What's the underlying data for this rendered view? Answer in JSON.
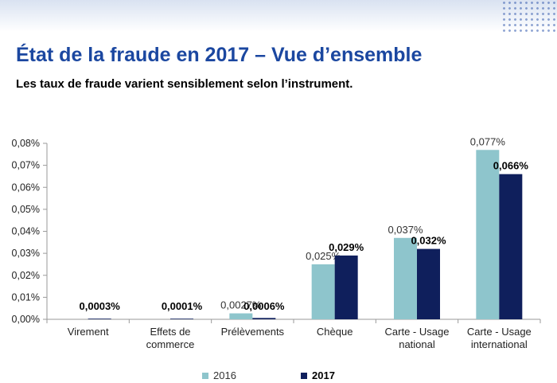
{
  "header": {
    "title": "État de la fraude en 2017 – Vue d’ensemble",
    "subtitle": "Les taux de fraude varient sensiblement selon l’instrument."
  },
  "colors": {
    "s2016": "#8ec5cc",
    "s2017": "#0f1f5c",
    "title": "#1b47a0"
  },
  "chart_data": {
    "type": "bar",
    "categories": [
      [
        "Virement"
      ],
      [
        "Effets de",
        "commerce"
      ],
      [
        "Prélèvements"
      ],
      [
        "Chèque"
      ],
      [
        "Carte - Usage",
        "national"
      ],
      [
        "Carte - Usage",
        "international"
      ]
    ],
    "series": [
      {
        "name": "2016",
        "values": [
          null,
          null,
          0.0027,
          0.025,
          0.037,
          0.077
        ],
        "labels": [
          "",
          "",
          "0,0027%",
          "0,025%",
          "0,037%",
          "0,077%"
        ]
      },
      {
        "name": "2017",
        "values": [
          0.0003,
          0.0001,
          0.0006,
          0.029,
          0.032,
          0.066
        ],
        "labels": [
          "0,0003%",
          "0,0001%",
          "0,0006%",
          "0,029%",
          "0,032%",
          "0,066%"
        ]
      }
    ],
    "yticks": [
      "0,00%",
      "0,01%",
      "0,02%",
      "0,03%",
      "0,04%",
      "0,05%",
      "0,06%",
      "0,07%",
      "0,08%"
    ],
    "ylim": [
      0,
      0.08
    ],
    "grid": false,
    "legend_position": "bottom"
  }
}
